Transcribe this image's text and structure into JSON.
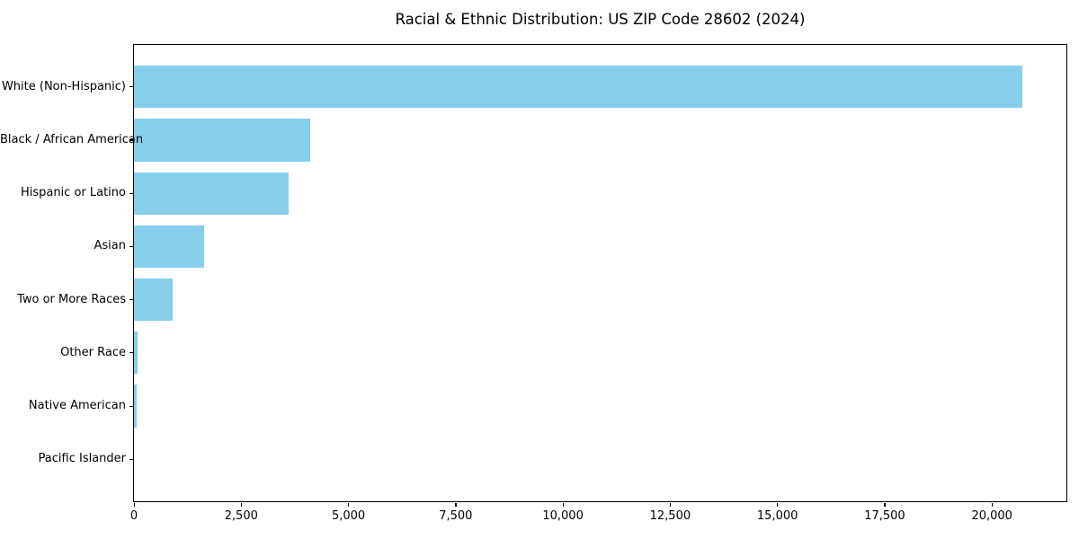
{
  "chart_data": {
    "type": "bar",
    "orientation": "horizontal",
    "title": "Racial & Ethnic Distribution: US ZIP Code 28602 (2024)",
    "categories": [
      "White (Non-Hispanic)",
      "Black / African American",
      "Hispanic or Latino",
      "Asian",
      "Two or More Races",
      "Other Race",
      "Native American",
      "Pacific Islander"
    ],
    "values": [
      20700,
      4100,
      3600,
      1640,
      900,
      85,
      60,
      0
    ],
    "xlabel": "",
    "ylabel": "",
    "xlim": [
      0,
      21735
    ],
    "x_ticks": [
      0,
      2500,
      5000,
      7500,
      10000,
      12500,
      15000,
      17500,
      20000
    ],
    "x_tick_labels": [
      "0",
      "2,500",
      "5,000",
      "7,500",
      "10,000",
      "12,500",
      "15,000",
      "17,500",
      "20,000"
    ],
    "grid": false,
    "legend": "none",
    "bar_color": "#87CEEB",
    "bar_rel_height": 0.8
  },
  "colors": {
    "bar": "#87CEEB",
    "spine": "#000000",
    "text": "#000000",
    "background": "#FFFFFF"
  }
}
